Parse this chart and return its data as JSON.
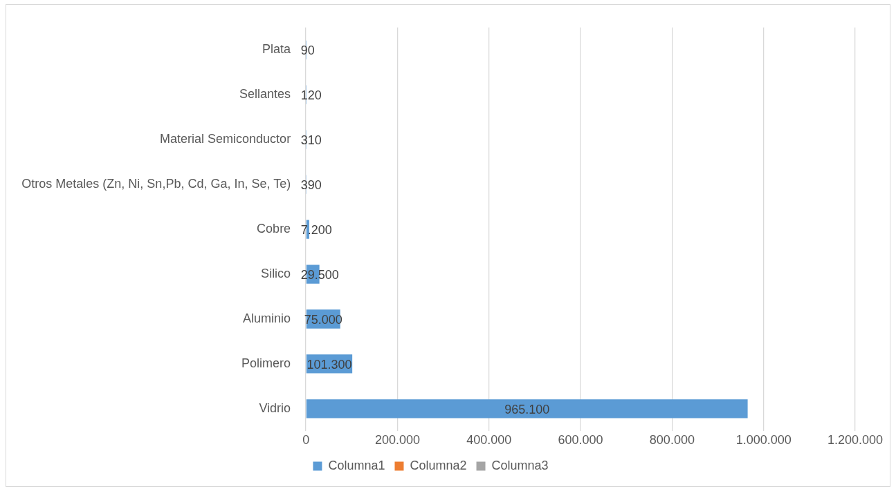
{
  "chart_data": {
    "type": "bar",
    "orientation": "horizontal",
    "categories": [
      "Plata",
      "Sellantes",
      "Material Semiconductor",
      "Otros Metales (Zn, Ni, Sn,Pb, Cd, Ga, In, Se, Te)",
      "Cobre",
      "Silico",
      "Aluminio",
      "Polimero",
      "Vidrio"
    ],
    "series": [
      {
        "name": "Columna1",
        "color": "#5b9bd5",
        "values": [
          90,
          120,
          310,
          390,
          7200,
          29500,
          75000,
          101300,
          965100
        ],
        "value_labels": [
          "90",
          "120",
          "310",
          "390",
          "7.200",
          "29.500",
          "75.000",
          "101.300",
          "965.100"
        ]
      },
      {
        "name": "Columna2",
        "color": "#ed7d31",
        "values": [
          null,
          null,
          null,
          null,
          null,
          null,
          null,
          null,
          null
        ]
      },
      {
        "name": "Columna3",
        "color": "#a5a5a5",
        "values": [
          null,
          null,
          null,
          null,
          null,
          null,
          null,
          null,
          null
        ]
      }
    ],
    "xlim": [
      0,
      1200000
    ],
    "xticks": [
      0,
      {
        "value": 200000,
        "label": "200.000"
      },
      {
        "value": 400000,
        "label": "400.000"
      },
      {
        "value": 600000,
        "label": "600.000"
      },
      {
        "value": 800000,
        "label": "800.000"
      },
      {
        "value": 1000000,
        "label": "1.000.000"
      },
      {
        "value": 1200000,
        "label": "1.200.000"
      }
    ],
    "grid": "x",
    "legend": "bottom"
  }
}
